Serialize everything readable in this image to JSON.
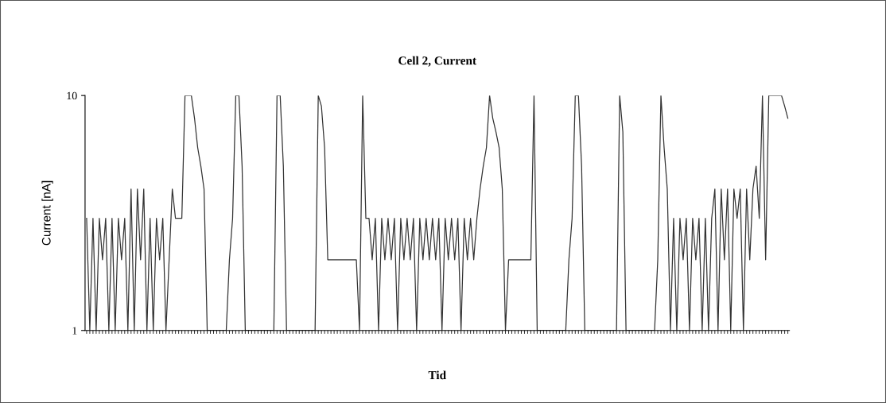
{
  "chart_data": {
    "type": "line",
    "title": "Cell 2, Current",
    "xlabel": "Tid",
    "ylabel": "Current [nA]",
    "categories": [
      null,
      null,
      null,
      null,
      null,
      null,
      null,
      null,
      null,
      null,
      null,
      null,
      null,
      null,
      null,
      null,
      null,
      null,
      null,
      null,
      null,
      null,
      null,
      null,
      null,
      null,
      null,
      null,
      null,
      null,
      null,
      null,
      null,
      null,
      null,
      null,
      null,
      null,
      null,
      null,
      null,
      null,
      null,
      null,
      null,
      null,
      null,
      null,
      null,
      null,
      null,
      null,
      null,
      null,
      null,
      null,
      null,
      null,
      null,
      null,
      null,
      null,
      null,
      null,
      null,
      null,
      null,
      null,
      null,
      null,
      null,
      null,
      null,
      null,
      null,
      null,
      null,
      null,
      null,
      null,
      null,
      null,
      null,
      null,
      null,
      null,
      null,
      null,
      null,
      null,
      null,
      null,
      null,
      null,
      null,
      null,
      null,
      null,
      null,
      null,
      null,
      null,
      null,
      null,
      null,
      null,
      null,
      null,
      null,
      null,
      null,
      null,
      null,
      null,
      null,
      null,
      null,
      null,
      null,
      null,
      null,
      null,
      null,
      null,
      null,
      null,
      null,
      null,
      null,
      null,
      null,
      null,
      null,
      null,
      null,
      null,
      null,
      null,
      null,
      null,
      null,
      null,
      null,
      null,
      null,
      null,
      null,
      null,
      null,
      null,
      null,
      null,
      null,
      null,
      null,
      null,
      null,
      null,
      null,
      null,
      null,
      null,
      null,
      null,
      null,
      null,
      null,
      null,
      null,
      null,
      null,
      null,
      null,
      null,
      null,
      null,
      null,
      null,
      null,
      null,
      null,
      null,
      null,
      null,
      null,
      null,
      null,
      null,
      null,
      null,
      null,
      null,
      null,
      null,
      null,
      null,
      null,
      null,
      null,
      null,
      null,
      null,
      null,
      null,
      null,
      null,
      null,
      null,
      null,
      null,
      null,
      null,
      null,
      null,
      null,
      null,
      null,
      null,
      null,
      null,
      null,
      null
    ],
    "values": [
      3,
      1,
      3,
      1,
      3,
      2,
      3,
      1,
      3,
      1,
      3,
      2,
      3,
      1,
      4,
      1,
      4,
      2,
      4,
      1,
      3,
      1,
      3,
      2,
      3,
      1,
      2,
      4,
      3,
      3,
      3,
      10,
      10,
      10,
      8,
      6,
      5,
      4,
      1,
      1,
      1,
      1,
      1,
      1,
      1,
      2,
      3,
      10,
      10,
      5,
      1,
      1,
      1,
      1,
      1,
      1,
      1,
      1,
      1,
      1,
      10,
      10,
      5,
      1,
      1,
      1,
      1,
      1,
      1,
      1,
      1,
      1,
      1,
      10,
      9,
      6,
      2,
      2,
      2,
      2,
      2,
      2,
      2,
      2,
      2,
      2,
      1,
      10,
      3,
      3,
      2,
      3,
      1,
      3,
      2,
      3,
      2,
      3,
      1,
      3,
      2,
      3,
      2,
      3,
      1,
      3,
      2,
      3,
      2,
      3,
      2,
      3,
      1,
      3,
      2,
      3,
      2,
      3,
      1,
      3,
      2,
      3,
      2,
      3,
      4,
      5,
      6,
      10,
      8,
      7,
      6,
      4,
      1,
      2,
      2,
      2,
      2,
      2,
      2,
      2,
      2,
      10,
      1,
      1,
      1,
      1,
      1,
      1,
      1,
      1,
      1,
      1,
      2,
      3,
      10,
      10,
      5,
      1,
      1,
      1,
      1,
      1,
      1,
      1,
      1,
      1,
      1,
      1,
      10,
      7,
      1,
      1,
      1,
      1,
      1,
      1,
      1,
      1,
      1,
      1,
      2,
      10,
      6,
      4,
      1,
      3,
      1,
      3,
      2,
      3,
      1,
      3,
      2,
      3,
      1,
      3,
      1,
      3,
      4,
      1,
      4,
      2,
      4,
      1,
      4,
      3,
      4,
      1,
      4,
      2,
      4,
      5,
      3,
      10,
      2,
      10,
      10,
      10,
      10,
      10,
      9,
      8
    ],
    "color": "#333333",
    "log": "y",
    "ylim": [
      1,
      10
    ],
    "yticks": [
      1,
      10
    ],
    "grid": false,
    "legend": false,
    "marker": "none",
    "line_style": "solid"
  }
}
